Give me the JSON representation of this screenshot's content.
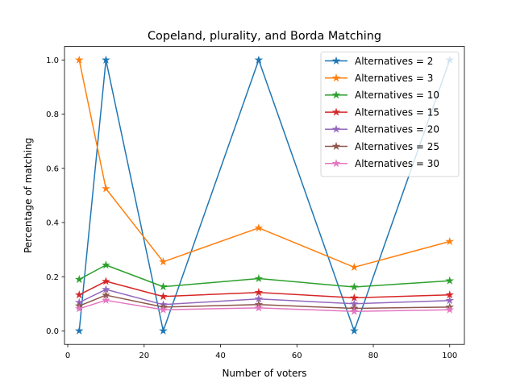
{
  "chart_data": {
    "type": "line",
    "title": "Copeland, plurality, and Borda Matching",
    "xlabel": "Number of voters",
    "ylabel": "Percentage of matching",
    "xlim": [
      -0.85,
      103.85
    ],
    "ylim": [
      -0.05,
      1.05
    ],
    "xticks": [
      0,
      20,
      40,
      60,
      80,
      100
    ],
    "yticks": [
      0.0,
      0.2,
      0.4,
      0.6,
      0.8,
      1.0
    ],
    "xtick_labels": [
      "0",
      "20",
      "40",
      "60",
      "80",
      "100"
    ],
    "ytick_labels": [
      "0.0",
      "0.2",
      "0.4",
      "0.6",
      "0.8",
      "1.0"
    ],
    "x": [
      3,
      10,
      25,
      50,
      75,
      100
    ],
    "marker": "star",
    "grid": false,
    "legend_position": "top-right",
    "series": [
      {
        "name": "Alternatives = 2",
        "color": "#1f77b4",
        "values": [
          0.0,
          1.0,
          0.0,
          1.0,
          0.0,
          1.0
        ]
      },
      {
        "name": "Alternatives = 3",
        "color": "#ff7f0e",
        "values": [
          1.0,
          0.525,
          0.255,
          0.38,
          0.235,
          0.33
        ]
      },
      {
        "name": "Alternatives = 10",
        "color": "#2ca02c",
        "values": [
          0.19,
          0.243,
          0.163,
          0.193,
          0.162,
          0.185
        ]
      },
      {
        "name": "Alternatives = 15",
        "color": "#d62728",
        "values": [
          0.133,
          0.183,
          0.127,
          0.142,
          0.122,
          0.133
        ]
      },
      {
        "name": "Alternatives = 20",
        "color": "#9467bd",
        "values": [
          0.105,
          0.153,
          0.097,
          0.118,
          0.1,
          0.112
        ]
      },
      {
        "name": "Alternatives = 25",
        "color": "#8c564b",
        "values": [
          0.092,
          0.132,
          0.088,
          0.097,
          0.083,
          0.088
        ]
      },
      {
        "name": "Alternatives = 30",
        "color": "#e377c2",
        "values": [
          0.082,
          0.113,
          0.078,
          0.085,
          0.072,
          0.078
        ]
      }
    ]
  }
}
